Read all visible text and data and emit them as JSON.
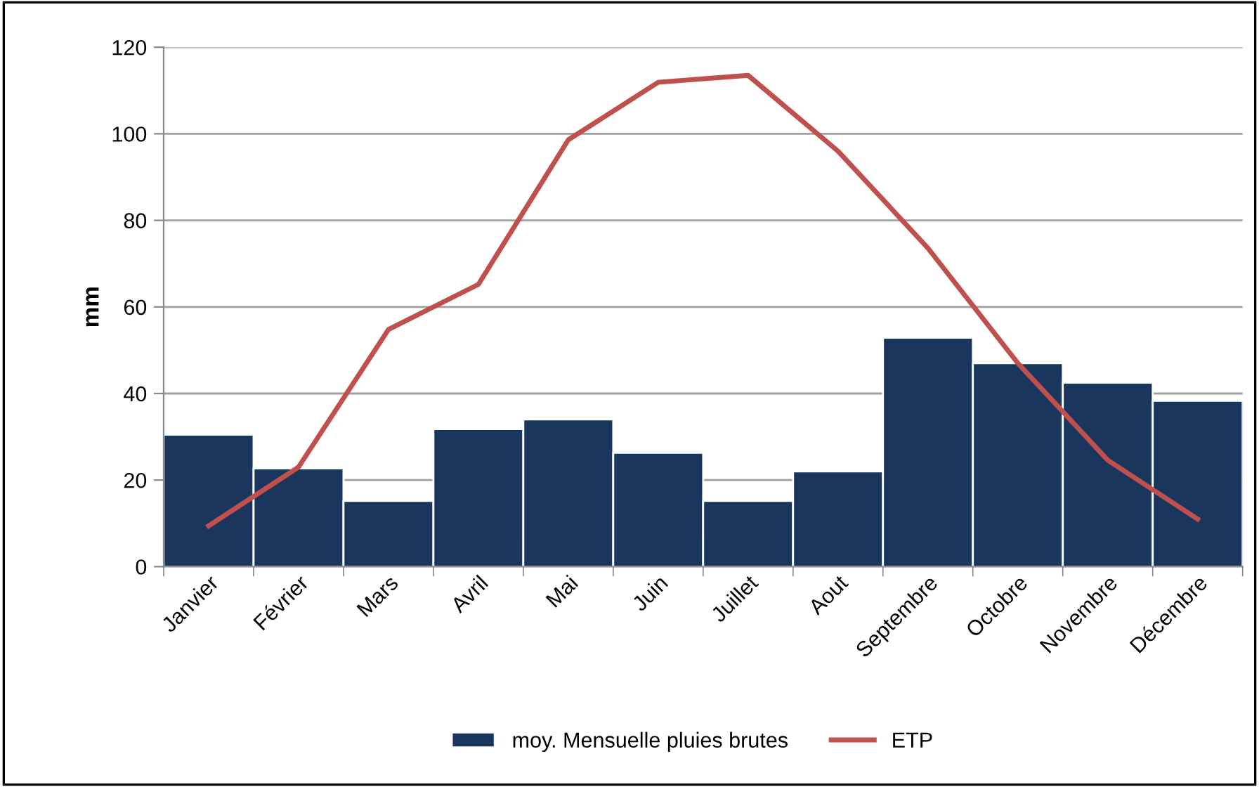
{
  "chart_data": {
    "type": "bar",
    "ylabel": "mm",
    "categories": [
      "Janvier",
      "Février",
      "Mars",
      "Avril",
      "Mai",
      "Juin",
      "Juillet",
      "Aout",
      "Septembre",
      "Octobre",
      "Novembre",
      "Décembre"
    ],
    "series": [
      {
        "name": "moy. Mensuelle pluies brutes",
        "color": "#1a365d",
        "values": [
          30.5,
          22.7,
          15.2,
          31.8,
          34,
          26.3,
          15.2,
          22,
          52.9,
          47,
          42.5,
          38.3
        ]
      },
      {
        "name": "ETP",
        "type": "line",
        "color": "#c0504d",
        "values": [
          9.4,
          23,
          54.8,
          65.2,
          98.6,
          111.9,
          113.5,
          96,
          73.6,
          47,
          24.6,
          11
        ]
      }
    ],
    "ylim": [
      0,
      120
    ],
    "yticks": [
      0,
      20,
      40,
      60,
      80,
      100,
      120
    ],
    "grid": "y",
    "legend": "bottom",
    "marker": "none",
    "line_style": "solid"
  }
}
